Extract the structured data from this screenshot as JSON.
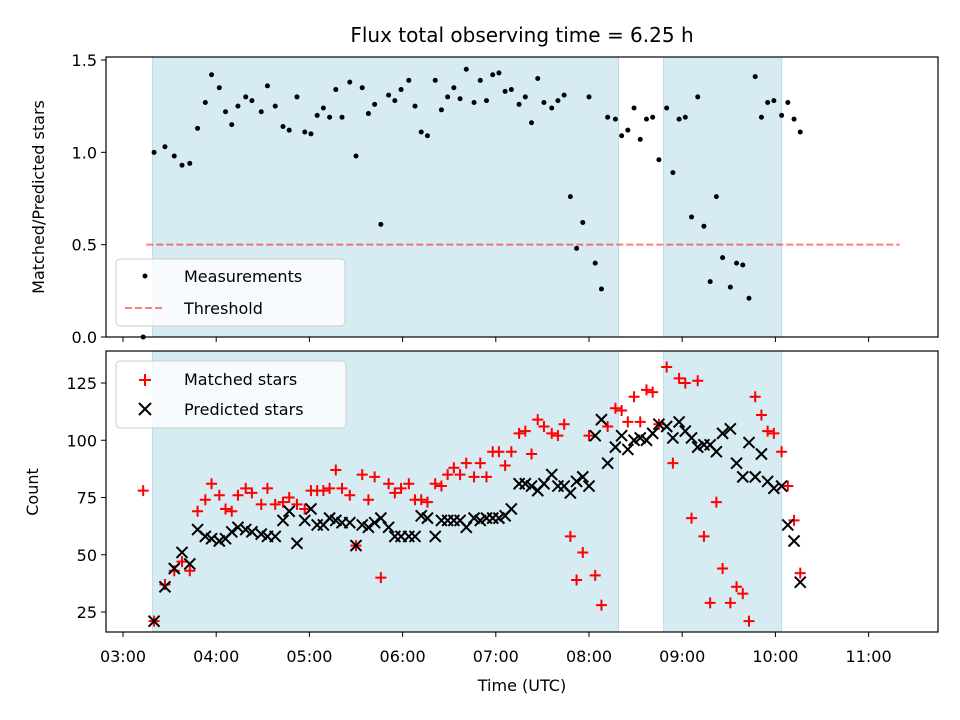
{
  "chart_data": {
    "type": "scatter",
    "title": "Flux total observing time = 6.25 h",
    "xlabel": "Time (UTC)",
    "x_ticks": [
      "03:00",
      "04:00",
      "05:00",
      "06:00",
      "07:00",
      "08:00",
      "09:00",
      "10:00",
      "11:00"
    ],
    "shaded_intervals": [
      [
        "03:19",
        "08:19"
      ],
      [
        "08:48",
        "10:04"
      ]
    ],
    "colors": {
      "shade": "#add8e6",
      "measurements": "#000000",
      "threshold": "#ff0000",
      "matched": "#ff0000",
      "predicted": "#000000"
    },
    "top_panel": {
      "ylabel": "Matched/Predicted stars",
      "ylim": [
        0,
        1.5
      ],
      "y_ticks": [
        "0.0",
        "0.5",
        "1.0",
        "1.5"
      ],
      "legend": {
        "placement": "lower-left",
        "measurements_label": "Measurements",
        "threshold_label": "Threshold"
      },
      "threshold": {
        "value": 0.5,
        "x_range": [
          "03:15",
          "11:20"
        ]
      },
      "measurements": [
        [
          "03:13",
          0.0
        ],
        [
          "03:20",
          1.0
        ],
        [
          "03:27",
          1.03
        ],
        [
          "03:33",
          0.98
        ],
        [
          "03:38",
          0.93
        ],
        [
          "03:43",
          0.94
        ],
        [
          "03:48",
          1.13
        ],
        [
          "03:53",
          1.27
        ],
        [
          "03:57",
          1.42
        ],
        [
          "04:02",
          1.35
        ],
        [
          "04:06",
          1.22
        ],
        [
          "04:10",
          1.15
        ],
        [
          "04:14",
          1.25
        ],
        [
          "04:19",
          1.3
        ],
        [
          "04:23",
          1.28
        ],
        [
          "04:29",
          1.22
        ],
        [
          "04:33",
          1.36
        ],
        [
          "04:38",
          1.25
        ],
        [
          "04:43",
          1.14
        ],
        [
          "04:47",
          1.12
        ],
        [
          "04:52",
          1.3
        ],
        [
          "04:57",
          1.11
        ],
        [
          "05:01",
          1.1
        ],
        [
          "05:05",
          1.2
        ],
        [
          "05:09",
          1.24
        ],
        [
          "05:13",
          1.19
        ],
        [
          "05:17",
          1.34
        ],
        [
          "05:21",
          1.19
        ],
        [
          "05:26",
          1.38
        ],
        [
          "05:30",
          0.98
        ],
        [
          "05:34",
          1.35
        ],
        [
          "05:38",
          1.21
        ],
        [
          "05:42",
          1.26
        ],
        [
          "05:46",
          0.61
        ],
        [
          "05:51",
          1.31
        ],
        [
          "05:55",
          1.28
        ],
        [
          "05:59",
          1.34
        ],
        [
          "06:04",
          1.39
        ],
        [
          "06:08",
          1.25
        ],
        [
          "06:12",
          1.11
        ],
        [
          "06:16",
          1.09
        ],
        [
          "06:21",
          1.39
        ],
        [
          "06:25",
          1.23
        ],
        [
          "06:29",
          1.3
        ],
        [
          "06:33",
          1.35
        ],
        [
          "06:37",
          1.29
        ],
        [
          "06:41",
          1.45
        ],
        [
          "06:46",
          1.27
        ],
        [
          "06:50",
          1.39
        ],
        [
          "06:54",
          1.28
        ],
        [
          "06:58",
          1.42
        ],
        [
          "07:02",
          1.43
        ],
        [
          "07:06",
          1.33
        ],
        [
          "07:10",
          1.34
        ],
        [
          "07:15",
          1.26
        ],
        [
          "07:19",
          1.3
        ],
        [
          "07:23",
          1.16
        ],
        [
          "07:27",
          1.4
        ],
        [
          "07:31",
          1.27
        ],
        [
          "07:36",
          1.24
        ],
        [
          "07:40",
          1.28
        ],
        [
          "07:44",
          1.31
        ],
        [
          "07:48",
          0.76
        ],
        [
          "07:52",
          0.48
        ],
        [
          "07:56",
          0.62
        ],
        [
          "08:00",
          1.3
        ],
        [
          "08:04",
          0.4
        ],
        [
          "08:08",
          0.26
        ],
        [
          "08:12",
          1.19
        ],
        [
          "08:17",
          1.18
        ],
        [
          "08:21",
          1.09
        ],
        [
          "08:25",
          1.12
        ],
        [
          "08:29",
          1.24
        ],
        [
          "08:33",
          1.07
        ],
        [
          "08:37",
          1.18
        ],
        [
          "08:41",
          1.19
        ],
        [
          "08:45",
          0.96
        ],
        [
          "08:50",
          1.24
        ],
        [
          "08:54",
          0.89
        ],
        [
          "08:58",
          1.18
        ],
        [
          "09:02",
          1.19
        ],
        [
          "09:06",
          0.65
        ],
        [
          "09:10",
          1.3
        ],
        [
          "09:14",
          0.6
        ],
        [
          "09:18",
          0.3
        ],
        [
          "09:22",
          0.76
        ],
        [
          "09:26",
          0.43
        ],
        [
          "09:31",
          0.27
        ],
        [
          "09:35",
          0.4
        ],
        [
          "09:39",
          0.39
        ],
        [
          "09:43",
          0.21
        ],
        [
          "09:47",
          1.41
        ],
        [
          "09:51",
          1.19
        ],
        [
          "09:55",
          1.27
        ],
        [
          "09:59",
          1.28
        ],
        [
          "10:04",
          1.2
        ],
        [
          "10:08",
          1.27
        ],
        [
          "10:12",
          1.18
        ],
        [
          "10:16",
          1.11
        ]
      ]
    },
    "bottom_panel": {
      "ylabel": "Count",
      "ylim": [
        15,
        140
      ],
      "y_ticks": [
        "25",
        "50",
        "75",
        "100",
        "125"
      ],
      "legend": {
        "placement": "upper-left",
        "matched_label": "Matched stars",
        "predicted_label": "Predicted stars"
      },
      "matched": [
        [
          "03:13",
          78
        ],
        [
          "03:20",
          21
        ],
        [
          "03:27",
          37
        ],
        [
          "03:33",
          43
        ],
        [
          "03:38",
          47
        ],
        [
          "03:43",
          43
        ],
        [
          "03:48",
          69
        ],
        [
          "03:53",
          74
        ],
        [
          "03:57",
          81
        ],
        [
          "04:02",
          76
        ],
        [
          "04:06",
          70
        ],
        [
          "04:10",
          69
        ],
        [
          "04:14",
          76
        ],
        [
          "04:19",
          79
        ],
        [
          "04:23",
          77
        ],
        [
          "04:29",
          72
        ],
        [
          "04:33",
          79
        ],
        [
          "04:38",
          72
        ],
        [
          "04:43",
          73
        ],
        [
          "04:47",
          75
        ],
        [
          "04:52",
          72
        ],
        [
          "04:57",
          70
        ],
        [
          "05:01",
          78
        ],
        [
          "05:05",
          78
        ],
        [
          "05:09",
          78
        ],
        [
          "05:13",
          79
        ],
        [
          "05:17",
          87
        ],
        [
          "05:21",
          79
        ],
        [
          "05:26",
          76
        ],
        [
          "05:30",
          54
        ],
        [
          "05:34",
          85
        ],
        [
          "05:38",
          74
        ],
        [
          "05:42",
          84
        ],
        [
          "05:46",
          40
        ],
        [
          "05:51",
          81
        ],
        [
          "05:55",
          77
        ],
        [
          "05:59",
          79
        ],
        [
          "06:04",
          81
        ],
        [
          "06:08",
          74
        ],
        [
          "06:12",
          74
        ],
        [
          "06:16",
          73
        ],
        [
          "06:21",
          81
        ],
        [
          "06:25",
          80
        ],
        [
          "06:29",
          85
        ],
        [
          "06:33",
          88
        ],
        [
          "06:37",
          85
        ],
        [
          "06:41",
          90
        ],
        [
          "06:46",
          84
        ],
        [
          "06:50",
          90
        ],
        [
          "06:54",
          84
        ],
        [
          "06:58",
          95
        ],
        [
          "07:02",
          95
        ],
        [
          "07:06",
          89
        ],
        [
          "07:10",
          95
        ],
        [
          "07:15",
          103
        ],
        [
          "07:19",
          104
        ],
        [
          "07:23",
          94
        ],
        [
          "07:27",
          109
        ],
        [
          "07:31",
          106
        ],
        [
          "07:36",
          103
        ],
        [
          "07:40",
          102
        ],
        [
          "07:44",
          107
        ],
        [
          "07:48",
          58
        ],
        [
          "07:52",
          39
        ],
        [
          "07:56",
          51
        ],
        [
          "08:00",
          102
        ],
        [
          "08:04",
          41
        ],
        [
          "08:08",
          28
        ],
        [
          "08:12",
          106
        ],
        [
          "08:17",
          114
        ],
        [
          "08:21",
          113
        ],
        [
          "08:25",
          108
        ],
        [
          "08:29",
          119
        ],
        [
          "08:33",
          108
        ],
        [
          "08:37",
          122
        ],
        [
          "08:41",
          121
        ],
        [
          "08:45",
          107
        ],
        [
          "08:50",
          132
        ],
        [
          "08:54",
          90
        ],
        [
          "08:58",
          127
        ],
        [
          "09:02",
          125
        ],
        [
          "09:06",
          66
        ],
        [
          "09:10",
          126
        ],
        [
          "09:14",
          58
        ],
        [
          "09:18",
          29
        ],
        [
          "09:22",
          73
        ],
        [
          "09:26",
          44
        ],
        [
          "09:31",
          29
        ],
        [
          "09:35",
          36
        ],
        [
          "09:39",
          33
        ],
        [
          "09:43",
          21
        ],
        [
          "09:47",
          119
        ],
        [
          "09:51",
          111
        ],
        [
          "09:55",
          104
        ],
        [
          "09:59",
          103
        ],
        [
          "10:04",
          95
        ],
        [
          "10:08",
          80
        ],
        [
          "10:12",
          65
        ],
        [
          "10:16",
          42
        ]
      ],
      "predicted": [
        [
          "03:20",
          21
        ],
        [
          "03:27",
          36
        ],
        [
          "03:33",
          44
        ],
        [
          "03:38",
          51
        ],
        [
          "03:43",
          46
        ],
        [
          "03:48",
          61
        ],
        [
          "03:53",
          58
        ],
        [
          "03:57",
          57
        ],
        [
          "04:02",
          56
        ],
        [
          "04:06",
          57
        ],
        [
          "04:10",
          60
        ],
        [
          "04:14",
          62
        ],
        [
          "04:19",
          61
        ],
        [
          "04:23",
          60
        ],
        [
          "04:29",
          59
        ],
        [
          "04:33",
          58
        ],
        [
          "04:38",
          58
        ],
        [
          "04:43",
          65
        ],
        [
          "04:47",
          69
        ],
        [
          "04:52",
          55
        ],
        [
          "04:57",
          65
        ],
        [
          "05:01",
          70
        ],
        [
          "05:05",
          63
        ],
        [
          "05:09",
          63
        ],
        [
          "05:13",
          66
        ],
        [
          "05:17",
          65
        ],
        [
          "05:21",
          64
        ],
        [
          "05:26",
          64
        ],
        [
          "05:30",
          54
        ],
        [
          "05:34",
          63
        ],
        [
          "05:38",
          62
        ],
        [
          "05:42",
          64
        ],
        [
          "05:46",
          66
        ],
        [
          "05:51",
          62
        ],
        [
          "05:55",
          58
        ],
        [
          "05:59",
          58
        ],
        [
          "06:04",
          58
        ],
        [
          "06:08",
          58
        ],
        [
          "06:12",
          67
        ],
        [
          "06:16",
          66
        ],
        [
          "06:21",
          58
        ],
        [
          "06:25",
          65
        ],
        [
          "06:29",
          65
        ],
        [
          "06:33",
          65
        ],
        [
          "06:37",
          65
        ],
        [
          "06:41",
          62
        ],
        [
          "06:46",
          66
        ],
        [
          "06:50",
          65
        ],
        [
          "06:54",
          66
        ],
        [
          "06:58",
          66
        ],
        [
          "07:02",
          66
        ],
        [
          "07:06",
          67
        ],
        [
          "07:10",
          70
        ],
        [
          "07:15",
          81
        ],
        [
          "07:19",
          81
        ],
        [
          "07:23",
          80
        ],
        [
          "07:27",
          78
        ],
        [
          "07:31",
          81
        ],
        [
          "07:36",
          85
        ],
        [
          "07:40",
          80
        ],
        [
          "07:44",
          80
        ],
        [
          "07:48",
          77
        ],
        [
          "07:52",
          82
        ],
        [
          "07:56",
          84
        ],
        [
          "08:00",
          80
        ],
        [
          "08:04",
          102
        ],
        [
          "08:08",
          109
        ],
        [
          "08:12",
          90
        ],
        [
          "08:17",
          97
        ],
        [
          "08:21",
          102
        ],
        [
          "08:25",
          96
        ],
        [
          "08:29",
          100
        ],
        [
          "08:33",
          101
        ],
        [
          "08:37",
          100
        ],
        [
          "08:41",
          103
        ],
        [
          "08:45",
          107
        ],
        [
          "08:50",
          106
        ],
        [
          "08:54",
          101
        ],
        [
          "08:58",
          108
        ],
        [
          "09:02",
          104
        ],
        [
          "09:06",
          101
        ],
        [
          "09:10",
          97
        ],
        [
          "09:14",
          98
        ],
        [
          "09:18",
          98
        ],
        [
          "09:22",
          95
        ],
        [
          "09:26",
          103
        ],
        [
          "09:31",
          105
        ],
        [
          "09:35",
          90
        ],
        [
          "09:39",
          84
        ],
        [
          "09:43",
          99
        ],
        [
          "09:47",
          84
        ],
        [
          "09:51",
          94
        ],
        [
          "09:55",
          82
        ],
        [
          "09:59",
          79
        ],
        [
          "10:04",
          80
        ],
        [
          "10:08",
          63
        ],
        [
          "10:12",
          56
        ],
        [
          "10:16",
          38
        ]
      ]
    }
  }
}
